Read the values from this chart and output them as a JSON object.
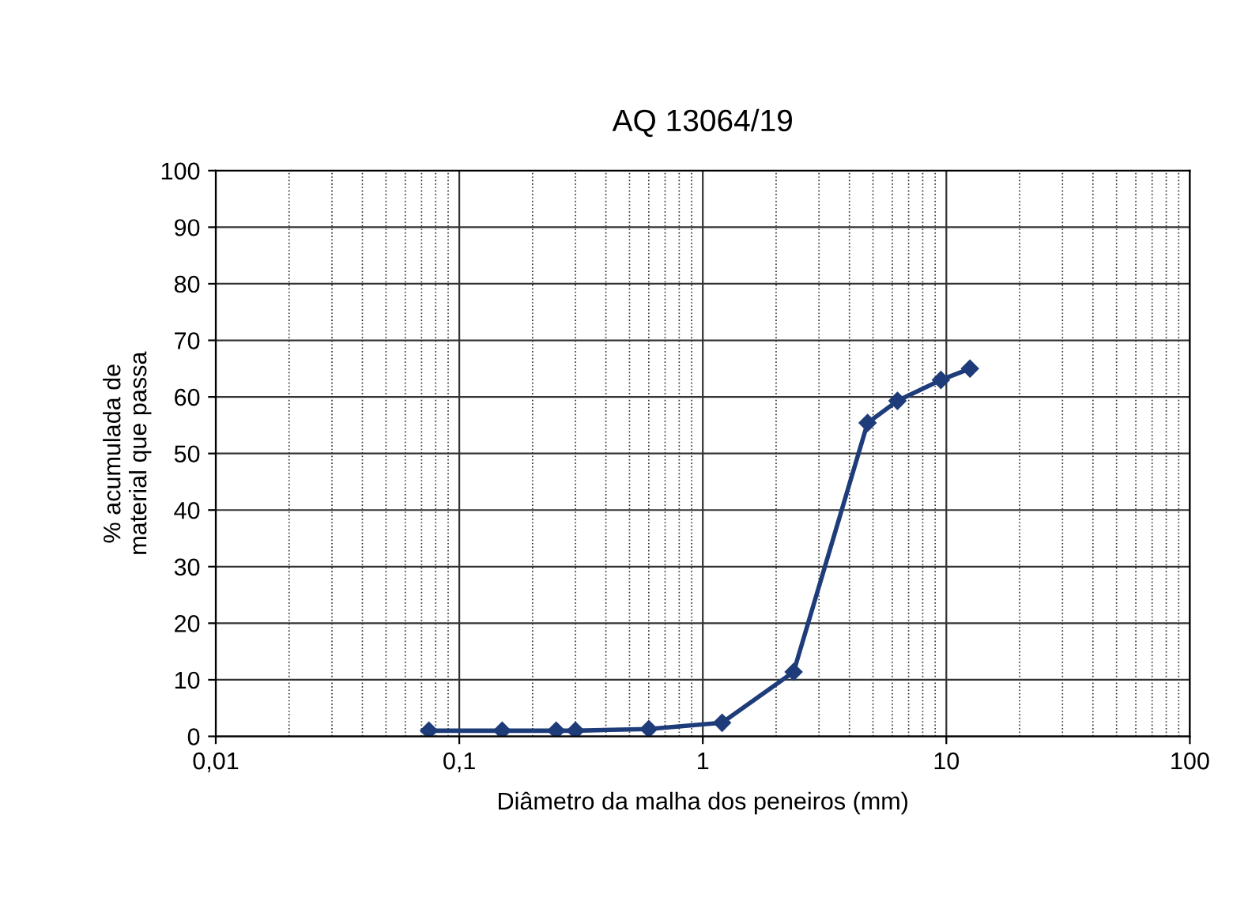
{
  "chart_data": {
    "type": "line",
    "title": "AQ 13064/19",
    "xlabel": "Diâmetro da malha dos peneiros (mm)",
    "ylabel": "% acumulada de\nmaterial que passa",
    "x": [
      0.075,
      0.15,
      0.25,
      0.3,
      0.6,
      1.2,
      2.36,
      4.75,
      6.3,
      9.5,
      12.5
    ],
    "series": [
      {
        "color": "#1f3c7a",
        "values": [
          1,
          1,
          1,
          1,
          1.3,
          2.4,
          11.4,
          55.4,
          59.3,
          63,
          65
        ]
      }
    ],
    "log": "x",
    "xlim": [
      0.01,
      100
    ],
    "xticks": [
      {
        "value": 0.01,
        "label": "0,01"
      },
      {
        "value": 0.1,
        "label": "0,1"
      },
      1,
      10,
      100
    ],
    "ylim": [
      0,
      100
    ],
    "yticks": [
      0,
      10,
      20,
      30,
      40,
      50,
      60,
      70,
      80,
      90,
      100
    ],
    "grid": true,
    "marker": "diamond",
    "line_style": "solid"
  }
}
